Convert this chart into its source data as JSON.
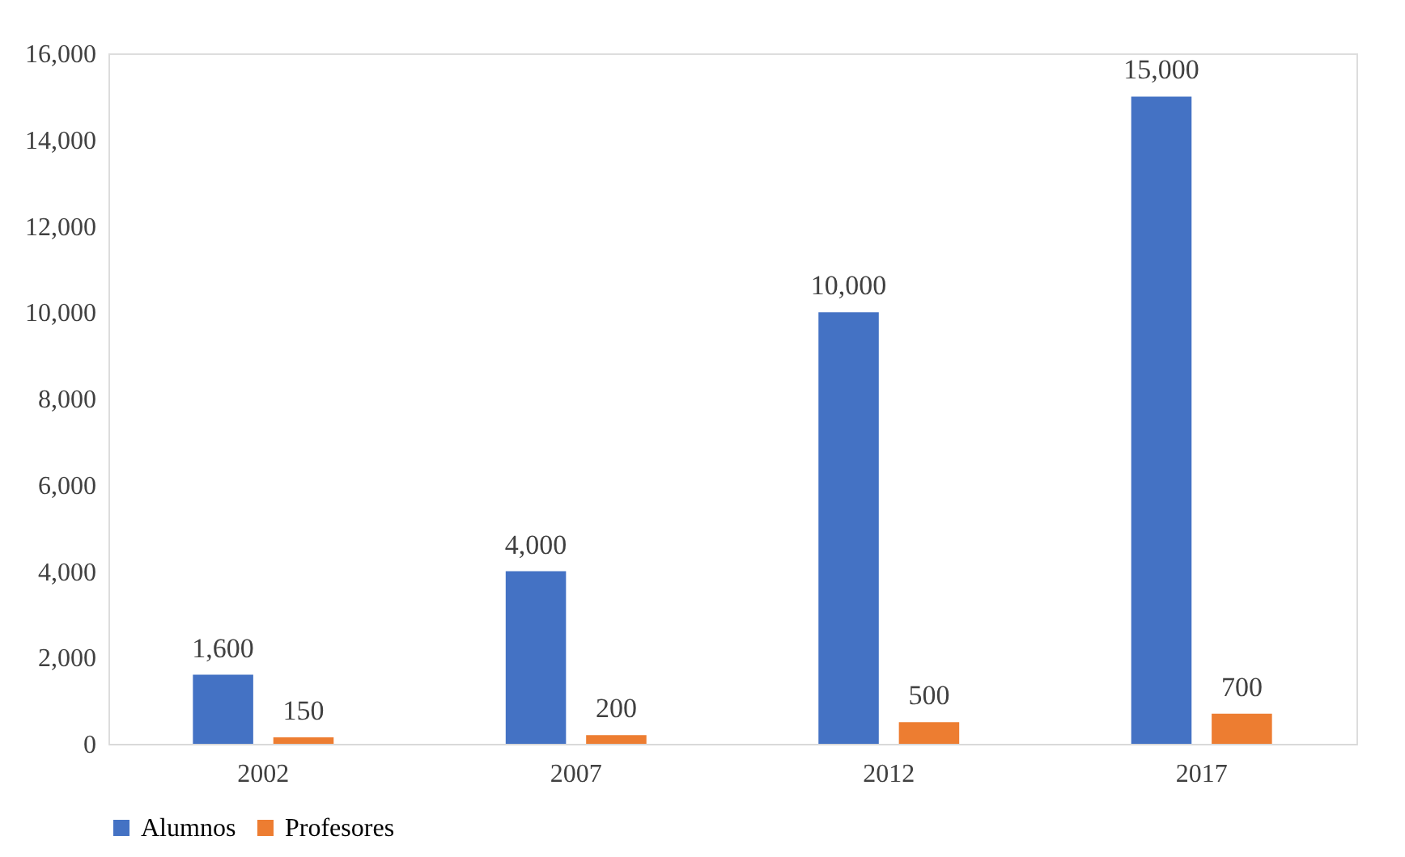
{
  "chart_data": {
    "type": "bar",
    "categories": [
      "2002",
      "2007",
      "2012",
      "2017"
    ],
    "series": [
      {
        "name": "Alumnos",
        "color": "#4472c4",
        "values": [
          1600,
          4000,
          10000,
          15000
        ],
        "value_labels": [
          "1,600",
          "4,000",
          "10,000",
          "15,000"
        ]
      },
      {
        "name": "Profesores",
        "color": "#ed7d31",
        "values": [
          150,
          200,
          500,
          700
        ],
        "value_labels": [
          "150",
          "200",
          "500",
          "700"
        ]
      }
    ],
    "ylim": [
      0,
      16000
    ],
    "yticks": [
      {
        "value": 0,
        "label": "0"
      },
      {
        "value": 2000,
        "label": "2,000"
      },
      {
        "value": 4000,
        "label": "4,000"
      },
      {
        "value": 6000,
        "label": "6,000"
      },
      {
        "value": 8000,
        "label": "8,000"
      },
      {
        "value": 10000,
        "label": "10,000"
      },
      {
        "value": 12000,
        "label": "12,000"
      },
      {
        "value": 14000,
        "label": "14,000"
      },
      {
        "value": 16000,
        "label": "16,000"
      }
    ],
    "grid": false,
    "legend": "bottom"
  }
}
